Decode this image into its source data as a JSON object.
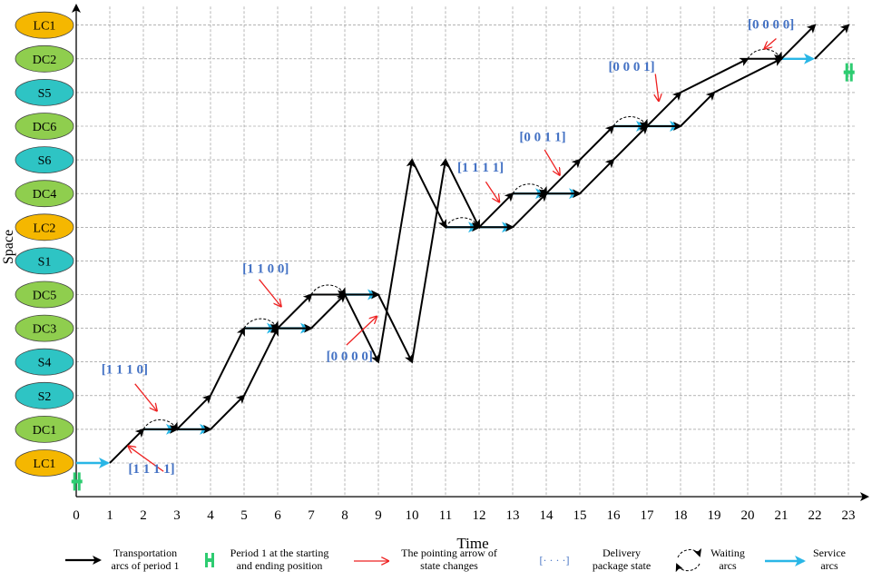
{
  "axis": {
    "x_title": "Time",
    "y_title": "Space",
    "x_ticks": [
      "0",
      "1",
      "2",
      "3",
      "4",
      "5",
      "6",
      "7",
      "8",
      "9",
      "10",
      "11",
      "12",
      "13",
      "14",
      "15",
      "16",
      "17",
      "18",
      "19",
      "20",
      "21",
      "22",
      "23"
    ]
  },
  "nodes": [
    {
      "label": "LC1",
      "type": "LC"
    },
    {
      "label": "DC1",
      "type": "DC"
    },
    {
      "label": "S2",
      "type": "S"
    },
    {
      "label": "S4",
      "type": "S"
    },
    {
      "label": "DC3",
      "type": "DC"
    },
    {
      "label": "DC5",
      "type": "DC"
    },
    {
      "label": "S1",
      "type": "S"
    },
    {
      "label": "LC2",
      "type": "LC"
    },
    {
      "label": "DC4",
      "type": "DC"
    },
    {
      "label": "S6",
      "type": "S"
    },
    {
      "label": "DC6",
      "type": "DC"
    },
    {
      "label": "S5",
      "type": "S"
    },
    {
      "label": "DC2",
      "type": "DC"
    },
    {
      "label": "LC1",
      "type": "LC"
    }
  ],
  "colors": {
    "LC": "#f5b700",
    "DC": "#8fce4e",
    "S": "#2ec4c4",
    "transport": "#000000",
    "service": "#29b6e6",
    "pointer": "#ee2222",
    "state_text": "#4472c4",
    "period_marker": "#2ecc71"
  },
  "transport_arcs": [
    [
      1,
      0,
      2,
      1
    ],
    [
      2,
      1,
      3,
      1
    ],
    [
      3,
      1,
      4,
      2
    ],
    [
      4,
      2,
      5,
      4
    ],
    [
      5,
      4,
      6,
      4
    ],
    [
      6,
      4,
      7,
      5
    ],
    [
      7,
      5,
      8,
      5
    ],
    [
      8,
      5,
      9,
      3
    ],
    [
      9,
      3,
      10,
      9
    ],
    [
      10,
      9,
      11,
      7
    ],
    [
      11,
      7,
      12,
      7
    ],
    [
      12,
      7,
      13,
      8
    ],
    [
      13,
      8,
      14,
      8
    ],
    [
      14,
      8,
      15,
      9
    ],
    [
      15,
      9,
      16,
      10
    ],
    [
      16,
      10,
      17,
      10
    ],
    [
      17,
      10,
      18,
      11
    ],
    [
      18,
      11,
      20,
      12
    ],
    [
      20,
      12,
      21,
      12
    ],
    [
      21,
      12,
      22,
      13
    ],
    [
      3,
      1,
      4,
      1
    ],
    [
      4,
      1,
      5,
      2
    ],
    [
      5,
      2,
      6,
      4
    ],
    [
      6,
      4,
      7,
      4
    ],
    [
      7,
      4,
      8,
      5
    ],
    [
      8,
      5,
      9,
      5
    ],
    [
      9,
      5,
      10,
      3
    ],
    [
      10,
      3,
      11,
      9
    ],
    [
      11,
      9,
      12,
      7
    ],
    [
      12,
      7,
      13,
      7
    ],
    [
      13,
      7,
      14,
      8
    ],
    [
      14,
      8,
      15,
      8
    ],
    [
      15,
      8,
      16,
      9
    ],
    [
      16,
      9,
      17,
      10
    ],
    [
      17,
      10,
      18,
      10
    ],
    [
      18,
      10,
      19,
      11
    ],
    [
      19,
      11,
      21,
      12
    ],
    [
      22,
      12,
      23,
      13
    ]
  ],
  "service_arcs": [
    [
      0,
      0,
      1,
      0
    ],
    [
      2,
      1,
      3,
      1
    ],
    [
      3,
      1,
      4,
      1
    ],
    [
      5,
      4,
      6,
      4
    ],
    [
      6,
      4,
      7,
      4
    ],
    [
      8,
      5,
      9,
      5
    ],
    [
      11,
      7,
      12,
      7
    ],
    [
      12,
      7,
      13,
      7
    ],
    [
      13,
      8,
      14,
      8
    ],
    [
      14,
      8,
      15,
      8
    ],
    [
      16,
      10,
      17,
      10
    ],
    [
      17,
      10,
      18,
      10
    ],
    [
      21,
      12,
      22,
      12
    ]
  ],
  "waiting_arcs": [
    [
      2,
      3,
      1
    ],
    [
      5,
      6,
      4
    ],
    [
      7,
      8,
      5
    ],
    [
      11,
      12,
      7
    ],
    [
      13,
      14,
      8
    ],
    [
      16,
      17,
      10
    ],
    [
      20,
      21,
      12
    ]
  ],
  "state_labels": [
    {
      "text": "[1 1 1 1]",
      "t": 1.55,
      "s": -0.3
    },
    {
      "text": "[1 1 1 0]",
      "t": 0.75,
      "s": 2.65
    },
    {
      "text": "[1 1 0 0]",
      "t": 4.95,
      "s": 5.65
    },
    {
      "text": "[0 0 0 0]",
      "t": 7.45,
      "s": 3.05
    },
    {
      "text": "[1 1 1 1]",
      "t": 11.35,
      "s": 8.65
    },
    {
      "text": "[0 0 1 1]",
      "t": 13.2,
      "s": 9.55
    },
    {
      "text": "[0 0 0 1]",
      "t": 15.85,
      "s": 11.65
    },
    {
      "text": "[0 0 0 0]",
      "t": 20,
      "s": 12.9
    }
  ],
  "pointer_arrows": [
    [
      2.6,
      -0.25,
      1.55,
      0.5
    ],
    [
      1.75,
      2.35,
      2.4,
      1.55
    ],
    [
      5.45,
      5.45,
      6.1,
      4.65
    ],
    [
      8.05,
      3.5,
      8.95,
      4.35
    ],
    [
      12.2,
      8.35,
      12.6,
      7.75
    ],
    [
      13.95,
      9.3,
      14.4,
      8.55
    ],
    [
      17.25,
      11.55,
      17.35,
      10.75
    ],
    [
      20.85,
      12.6,
      20.5,
      12.3
    ]
  ],
  "period_markers": [
    [
      0.02,
      -0.55
    ],
    [
      23.02,
      11.6
    ]
  ],
  "legend": [
    {
      "kind": "transport",
      "line1": "Transportation",
      "line2": "arcs of period 1"
    },
    {
      "kind": "period",
      "line1": "Period 1 at the starting",
      "line2": "and ending position"
    },
    {
      "kind": "pointer",
      "line1": "The pointing arrow of",
      "line2": "state changes"
    },
    {
      "kind": "state",
      "symbol": "[· · · ·]",
      "line1": "Delivery",
      "line2": "package state"
    },
    {
      "kind": "waiting",
      "line1": "Waiting",
      "line2": "arcs"
    },
    {
      "kind": "service",
      "line1": "Service",
      "line2": "arcs"
    }
  ]
}
